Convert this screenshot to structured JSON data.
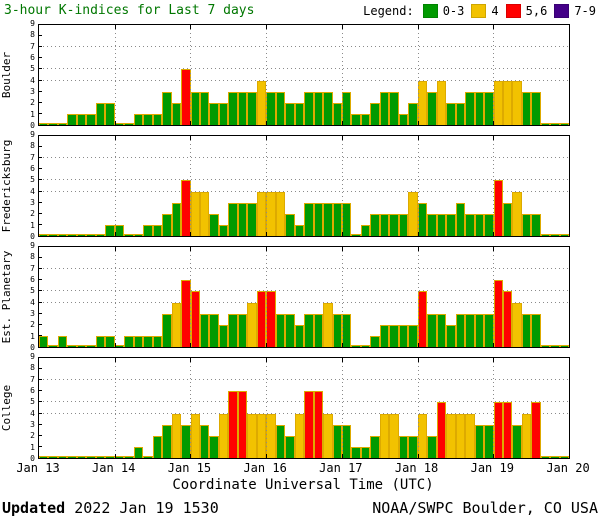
{
  "title": "3-hour K-indices for Last 7 days",
  "title_color": "#007700",
  "legend": {
    "label": "Legend:",
    "items": [
      {
        "label": "0-3",
        "color": "#009a00"
      },
      {
        "label": "4",
        "color": "#f2c200"
      },
      {
        "label": "5,6",
        "color": "#ff0000"
      },
      {
        "label": "7-9",
        "color": "#440088"
      }
    ]
  },
  "x_axis": {
    "tick_labels": [
      "Jan 13",
      "Jan 14",
      "Jan 15",
      "Jan 16",
      "Jan 17",
      "Jan 18",
      "Jan 19",
      "Jan 20"
    ],
    "title": "Coordinate Universal Time (UTC)"
  },
  "footer": {
    "updated_label": "Updated",
    "updated_value": "2022 Jan 19 1530",
    "credit": "NOAA/SWPC Boulder, CO USA"
  },
  "chart_data": {
    "type": "bar",
    "title": "3-hour K-indices for Last 7 days",
    "xlabel": "Coordinate Universal Time (UTC)",
    "ylim": [
      0,
      9
    ],
    "y_ticks": [
      0,
      1,
      2,
      3,
      4,
      5,
      6,
      7,
      8,
      9
    ],
    "gridlines_y": [
      4,
      5,
      7
    ],
    "bars_per_day": 8,
    "colors": {
      "green": "#009a00",
      "yellow": "#f2c200",
      "red": "#ff0000",
      "purple": "#440088",
      "bar_outline": "#ddaa00"
    },
    "color_rule": "0-3 green, 4 yellow, 5-6 red, 7-9 purple",
    "panels": [
      {
        "station": "Boulder",
        "days": [
          [
            0,
            0,
            0,
            1,
            1,
            1,
            2,
            2
          ],
          [
            0,
            0,
            1,
            1,
            1,
            3,
            2,
            5
          ],
          [
            3,
            3,
            2,
            2,
            3,
            3,
            3,
            4
          ],
          [
            3,
            3,
            2,
            2,
            3,
            3,
            3,
            2
          ],
          [
            3,
            1,
            1,
            2,
            3,
            3,
            1,
            2
          ],
          [
            4,
            3,
            4,
            2,
            2,
            3,
            3,
            3
          ],
          [
            4,
            4,
            4,
            3,
            3,
            0,
            0,
            0
          ]
        ]
      },
      {
        "station": "Fredericksburg",
        "days": [
          [
            0,
            0,
            0,
            0,
            0,
            0,
            0,
            1
          ],
          [
            1,
            0,
            0,
            1,
            1,
            2,
            3,
            5
          ],
          [
            4,
            4,
            2,
            1,
            3,
            3,
            3,
            4
          ],
          [
            4,
            4,
            2,
            1,
            3,
            3,
            3,
            3
          ],
          [
            3,
            0,
            1,
            2,
            2,
            2,
            2,
            4
          ],
          [
            3,
            2,
            2,
            2,
            3,
            2,
            2,
            2
          ],
          [
            5,
            3,
            4,
            2,
            2,
            0,
            0,
            0
          ]
        ]
      },
      {
        "station": "Est. Planetary",
        "days": [
          [
            1,
            0,
            1,
            0,
            0,
            0,
            1,
            1
          ],
          [
            0,
            1,
            1,
            1,
            1,
            3,
            4,
            6
          ],
          [
            5,
            3,
            3,
            2,
            3,
            3,
            4,
            5
          ],
          [
            5,
            3,
            3,
            2,
            3,
            3,
            4,
            3
          ],
          [
            3,
            0,
            0,
            1,
            2,
            2,
            2,
            2
          ],
          [
            5,
            3,
            3,
            2,
            3,
            3,
            3,
            3
          ],
          [
            6,
            5,
            4,
            3,
            3,
            0,
            0,
            0
          ]
        ]
      },
      {
        "station": "College",
        "days": [
          [
            0,
            0,
            0,
            0,
            0,
            0,
            0,
            0
          ],
          [
            0,
            0,
            1,
            0,
            2,
            3,
            4,
            3
          ],
          [
            4,
            3,
            2,
            4,
            6,
            6,
            4,
            4
          ],
          [
            4,
            3,
            2,
            4,
            6,
            6,
            4,
            3
          ],
          [
            3,
            1,
            1,
            2,
            4,
            4,
            2,
            2
          ],
          [
            4,
            2,
            5,
            4,
            4,
            4,
            3,
            3
          ],
          [
            5,
            5,
            3,
            4,
            5,
            0,
            0,
            0
          ]
        ]
      }
    ]
  }
}
